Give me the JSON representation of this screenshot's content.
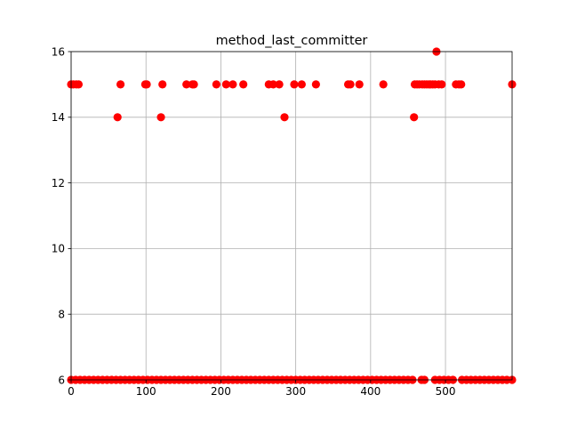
{
  "chart_data": {
    "type": "scatter",
    "title": "method_last_committer",
    "xlabel": "",
    "ylabel": "",
    "xlim": [
      0,
      589
    ],
    "ylim": [
      6,
      16
    ],
    "x_ticks": [
      0,
      100,
      200,
      300,
      400,
      500
    ],
    "y_ticks": [
      6,
      8,
      10,
      12,
      14,
      16
    ],
    "grid": true,
    "legend": "none",
    "marker_color": "#ff0000",
    "series": [
      {
        "points": [
          [
            0,
            15
          ],
          [
            3,
            15
          ],
          [
            7,
            15
          ],
          [
            10,
            15
          ],
          [
            62,
            14
          ],
          [
            66,
            15
          ],
          [
            99,
            15
          ],
          [
            101,
            15
          ],
          [
            120,
            14
          ],
          [
            122,
            15
          ],
          [
            154,
            15
          ],
          [
            162,
            15
          ],
          [
            164,
            15
          ],
          [
            194,
            15
          ],
          [
            207,
            15
          ],
          [
            216,
            15
          ],
          [
            230,
            15
          ],
          [
            264,
            15
          ],
          [
            270,
            15
          ],
          [
            278,
            15
          ],
          [
            285,
            14
          ],
          [
            298,
            15
          ],
          [
            308,
            15
          ],
          [
            327,
            15
          ],
          [
            370,
            15
          ],
          [
            373,
            15
          ],
          [
            385,
            15
          ],
          [
            417,
            15
          ],
          [
            458,
            14
          ],
          [
            459,
            15
          ],
          [
            462,
            15
          ],
          [
            465,
            15
          ],
          [
            469,
            15
          ],
          [
            472,
            15
          ],
          [
            475,
            15
          ],
          [
            478,
            15
          ],
          [
            480,
            15
          ],
          [
            483,
            15
          ],
          [
            486,
            15
          ],
          [
            488,
            16
          ],
          [
            491,
            15
          ],
          [
            495,
            15
          ],
          [
            514,
            15
          ],
          [
            518,
            15
          ],
          [
            521,
            15
          ],
          [
            589,
            15
          ],
          [
            0,
            6
          ],
          [
            6,
            6
          ],
          [
            12,
            6
          ],
          [
            18,
            6
          ],
          [
            24,
            6
          ],
          [
            30,
            6
          ],
          [
            36,
            6
          ],
          [
            42,
            6
          ],
          [
            48,
            6
          ],
          [
            54,
            6
          ],
          [
            60,
            6
          ],
          [
            66,
            6
          ],
          [
            72,
            6
          ],
          [
            78,
            6
          ],
          [
            84,
            6
          ],
          [
            90,
            6
          ],
          [
            96,
            6
          ],
          [
            102,
            6
          ],
          [
            108,
            6
          ],
          [
            114,
            6
          ],
          [
            120,
            6
          ],
          [
            126,
            6
          ],
          [
            132,
            6
          ],
          [
            138,
            6
          ],
          [
            144,
            6
          ],
          [
            150,
            6
          ],
          [
            156,
            6
          ],
          [
            162,
            6
          ],
          [
            168,
            6
          ],
          [
            174,
            6
          ],
          [
            180,
            6
          ],
          [
            186,
            6
          ],
          [
            192,
            6
          ],
          [
            198,
            6
          ],
          [
            204,
            6
          ],
          [
            210,
            6
          ],
          [
            216,
            6
          ],
          [
            222,
            6
          ],
          [
            228,
            6
          ],
          [
            234,
            6
          ],
          [
            240,
            6
          ],
          [
            246,
            6
          ],
          [
            252,
            6
          ],
          [
            258,
            6
          ],
          [
            264,
            6
          ],
          [
            270,
            6
          ],
          [
            276,
            6
          ],
          [
            282,
            6
          ],
          [
            288,
            6
          ],
          [
            294,
            6
          ],
          [
            300,
            6
          ],
          [
            306,
            6
          ],
          [
            312,
            6
          ],
          [
            318,
            6
          ],
          [
            324,
            6
          ],
          [
            330,
            6
          ],
          [
            336,
            6
          ],
          [
            342,
            6
          ],
          [
            348,
            6
          ],
          [
            354,
            6
          ],
          [
            360,
            6
          ],
          [
            366,
            6
          ],
          [
            372,
            6
          ],
          [
            378,
            6
          ],
          [
            384,
            6
          ],
          [
            390,
            6
          ],
          [
            396,
            6
          ],
          [
            402,
            6
          ],
          [
            408,
            6
          ],
          [
            414,
            6
          ],
          [
            420,
            6
          ],
          [
            426,
            6
          ],
          [
            432,
            6
          ],
          [
            438,
            6
          ],
          [
            444,
            6
          ],
          [
            450,
            6
          ],
          [
            456,
            6
          ],
          [
            468,
            6
          ],
          [
            472,
            6
          ],
          [
            486,
            6
          ],
          [
            492,
            6
          ],
          [
            498,
            6
          ],
          [
            504,
            6
          ],
          [
            510,
            6
          ],
          [
            522,
            6
          ],
          [
            528,
            6
          ],
          [
            534,
            6
          ],
          [
            540,
            6
          ],
          [
            546,
            6
          ],
          [
            552,
            6
          ],
          [
            558,
            6
          ],
          [
            564,
            6
          ],
          [
            570,
            6
          ],
          [
            576,
            6
          ],
          [
            582,
            6
          ],
          [
            589,
            6
          ]
        ]
      }
    ]
  }
}
